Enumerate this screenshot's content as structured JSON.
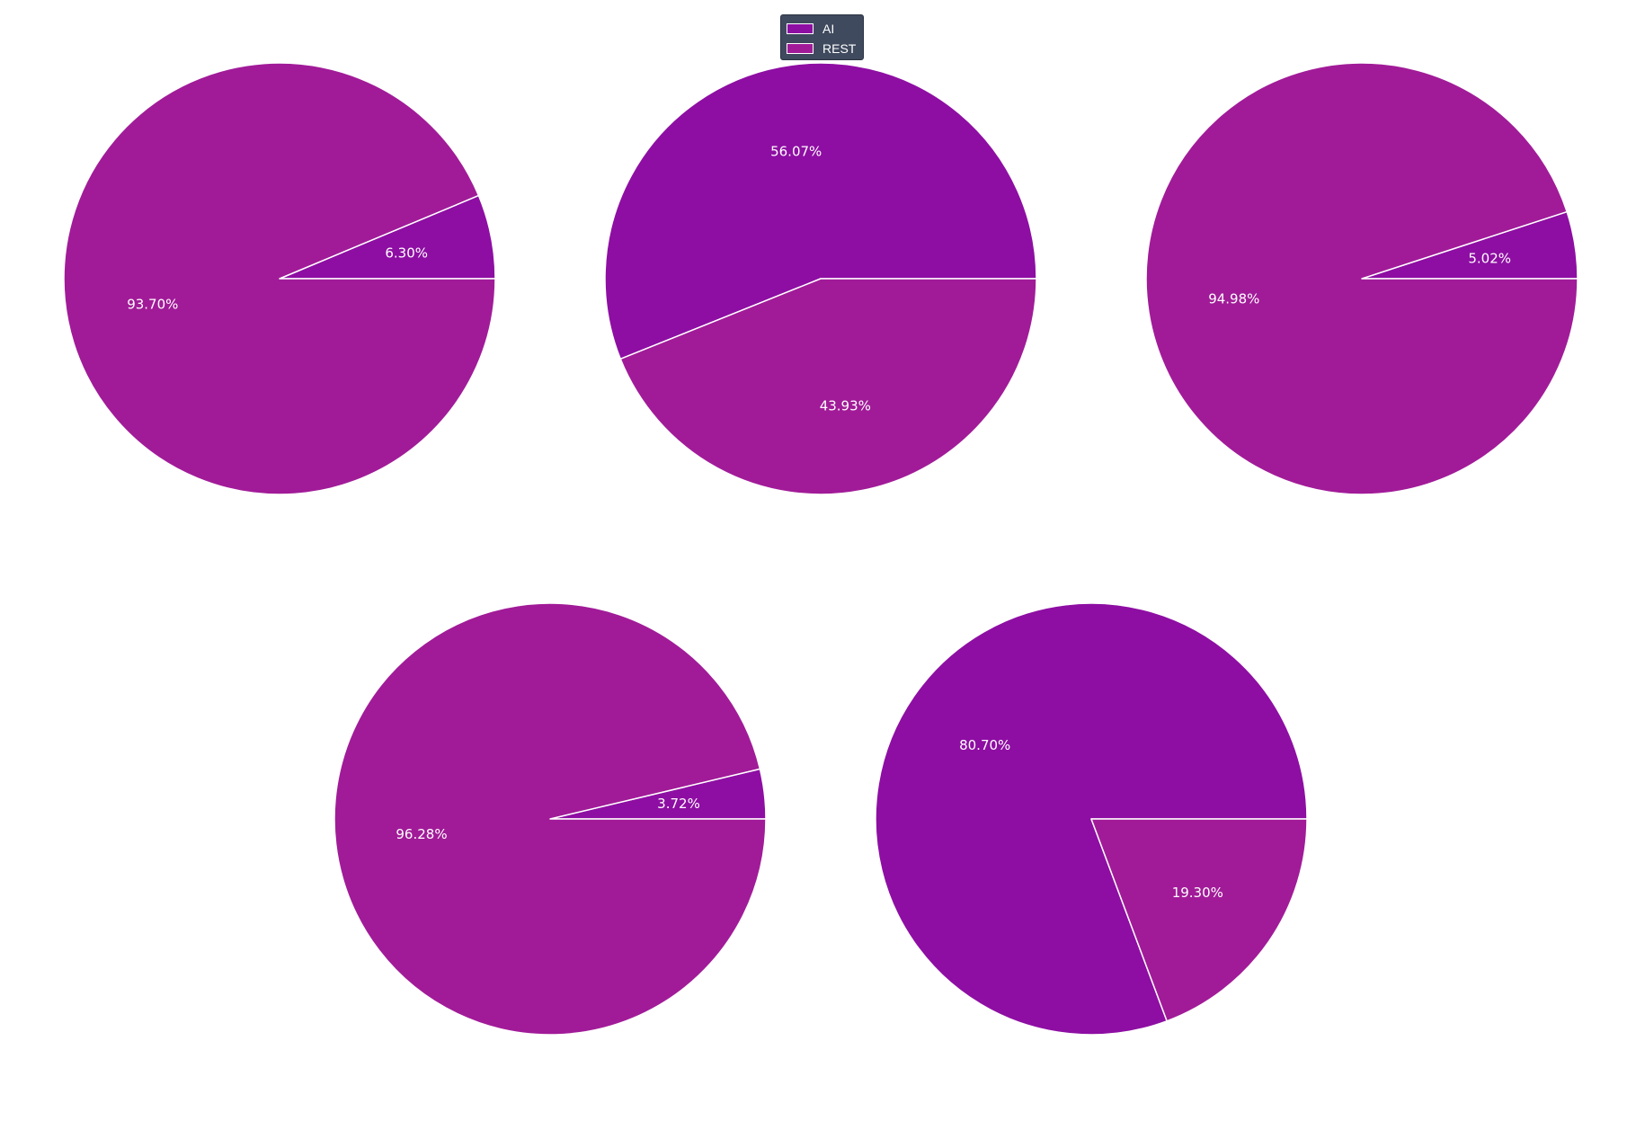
{
  "chart_data": [
    {
      "type": "pie",
      "slices": [
        {
          "label": "AI",
          "value": 6.3,
          "display": "6.30%"
        },
        {
          "label": "REST",
          "value": 93.7,
          "display": "93.70%"
        }
      ]
    },
    {
      "type": "pie",
      "slices": [
        {
          "label": "AI",
          "value": 56.07,
          "display": "56.07%"
        },
        {
          "label": "REST",
          "value": 43.93,
          "display": "43.93%"
        }
      ]
    },
    {
      "type": "pie",
      "slices": [
        {
          "label": "AI",
          "value": 5.02,
          "display": "5.02%"
        },
        {
          "label": "REST",
          "value": 94.98,
          "display": "94.98%"
        }
      ]
    },
    {
      "type": "pie",
      "slices": [
        {
          "label": "AI",
          "value": 3.72,
          "display": "3.72%"
        },
        {
          "label": "REST",
          "value": 96.28,
          "display": "96.28%"
        }
      ]
    },
    {
      "type": "pie",
      "slices": [
        {
          "label": "AI",
          "value": 80.7,
          "display": "80.70%"
        },
        {
          "label": "REST",
          "value": 19.3,
          "display": "19.30%"
        }
      ]
    }
  ],
  "legend": {
    "placement": "top-center",
    "items": [
      {
        "label": "AI",
        "color": "#8e0ea3"
      },
      {
        "label": "REST",
        "color": "#a11b98"
      }
    ]
  },
  "colors": {
    "AI": "#8e0ea3",
    "REST": "#a11b98",
    "slice_border": "#ffffff",
    "label_text": "#ffffff",
    "legend_background": "#3f4a5e"
  }
}
